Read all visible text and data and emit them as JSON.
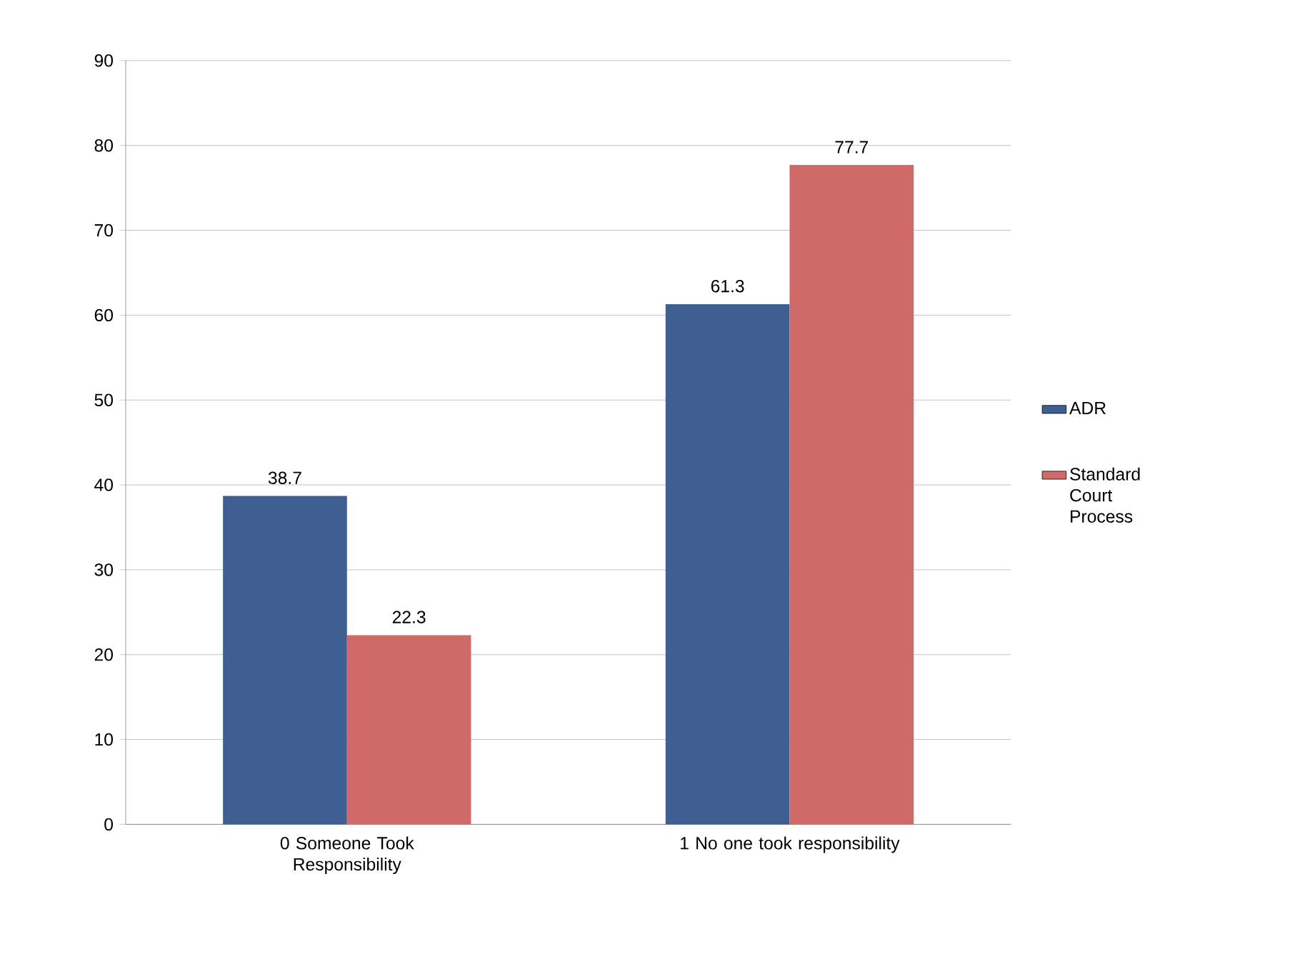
{
  "chart_data": {
    "type": "bar",
    "categories": [
      "0 Someone Took Responsibility",
      "1 No one took responsibility"
    ],
    "series": [
      {
        "name": "ADR",
        "color": "#3f5f93",
        "values": [
          38.7,
          61.3
        ]
      },
      {
        "name": "Standard Court Process",
        "color": "#d06a68",
        "values": [
          22.3,
          77.7
        ]
      }
    ],
    "ylim": [
      0,
      90
    ],
    "yticks": [
      0,
      10,
      20,
      30,
      40,
      50,
      60,
      70,
      80,
      90
    ],
    "grid": "y",
    "legend": "right",
    "data_labels": true
  }
}
